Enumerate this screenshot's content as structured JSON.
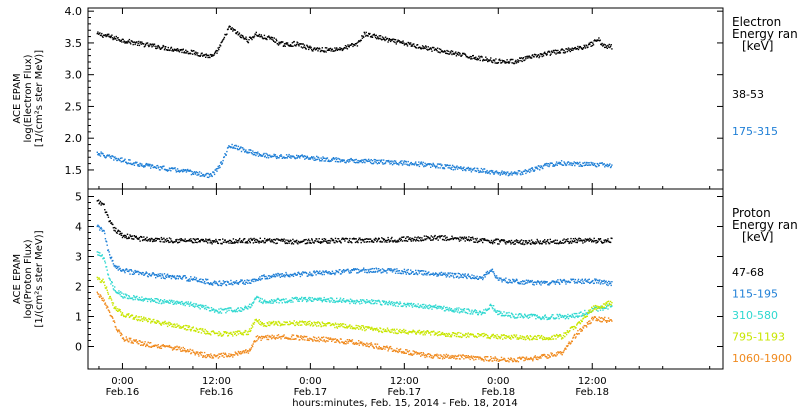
{
  "chart_data": [
    {
      "type": "scatter",
      "panel": "electron",
      "ylabel_lines": [
        "ACE EPAM",
        "log(Electron Flux)",
        "[1/(cm²s ster MeV)]"
      ],
      "ylim": [
        1.2,
        4.05
      ],
      "yticks": [
        "1.5",
        "2.0",
        "2.5",
        "3.0",
        "3.5",
        "4.0"
      ],
      "ytick_values": [
        1.5,
        2.0,
        2.5,
        3.0,
        3.5,
        4.0
      ],
      "legend_title_lines": [
        "Electron",
        "Energy ran",
        "[keV]"
      ],
      "series": [
        {
          "name": "38-53",
          "color": "#000000",
          "x": [
            -3.3,
            -2,
            0,
            2,
            4,
            6,
            8,
            10,
            11,
            11.6,
            12.6,
            13.5,
            14,
            15,
            16,
            17,
            17.8,
            19,
            20,
            21,
            22,
            23,
            24,
            26,
            28,
            30,
            30.8,
            32,
            34,
            36,
            38,
            40,
            42,
            44,
            46,
            48,
            50,
            52,
            54,
            56,
            58,
            60,
            60.6,
            61.5,
            62,
            62.5
          ],
          "y": [
            3.65,
            3.62,
            3.55,
            3.5,
            3.46,
            3.42,
            3.38,
            3.33,
            3.3,
            3.3,
            3.5,
            3.75,
            3.72,
            3.62,
            3.55,
            3.65,
            3.6,
            3.58,
            3.5,
            3.48,
            3.5,
            3.46,
            3.42,
            3.4,
            3.42,
            3.5,
            3.65,
            3.62,
            3.55,
            3.5,
            3.45,
            3.4,
            3.35,
            3.3,
            3.26,
            3.22,
            3.22,
            3.28,
            3.34,
            3.38,
            3.42,
            3.5,
            3.58,
            3.45,
            3.46,
            3.45
          ]
        },
        {
          "name": "175-315",
          "color": "#1f7fd6",
          "x": [
            -3.3,
            -2,
            0,
            2,
            4,
            6,
            8,
            10,
            11,
            11.6,
            12.6,
            13.5,
            14,
            16,
            18,
            20,
            22,
            24,
            26,
            28,
            30,
            32,
            34,
            36,
            38,
            40,
            42,
            44,
            46,
            48,
            50,
            52,
            54,
            56,
            58,
            60,
            62,
            62.5
          ],
          "y": [
            1.78,
            1.72,
            1.66,
            1.6,
            1.56,
            1.52,
            1.49,
            1.44,
            1.42,
            1.45,
            1.62,
            1.87,
            1.88,
            1.8,
            1.74,
            1.72,
            1.72,
            1.7,
            1.68,
            1.66,
            1.66,
            1.64,
            1.63,
            1.62,
            1.6,
            1.58,
            1.55,
            1.52,
            1.5,
            1.46,
            1.45,
            1.5,
            1.58,
            1.62,
            1.6,
            1.6,
            1.58,
            1.58
          ]
        }
      ]
    },
    {
      "type": "scatter",
      "panel": "proton",
      "ylabel_lines": [
        "ACE EPAM",
        "log(Proton Flux)",
        "[1/(cm²s ster MeV)]"
      ],
      "ylim": [
        -0.75,
        5.25
      ],
      "yticks": [
        "0",
        "1",
        "2",
        "3",
        "4",
        "5"
      ],
      "ytick_values": [
        0,
        1,
        2,
        3,
        4,
        5
      ],
      "legend_title_lines": [
        "Proton",
        "Energy ran",
        "[keV]"
      ],
      "series": [
        {
          "name": "47-68",
          "color": "#000000",
          "x": [
            -3.3,
            -2.5,
            -1.8,
            -1,
            0,
            2,
            4,
            6,
            8,
            10,
            12,
            14,
            16,
            18,
            20,
            22,
            24,
            26,
            28,
            30,
            32,
            34,
            36,
            38,
            40,
            42,
            44,
            46,
            48,
            50,
            52,
            54,
            56,
            58,
            60,
            62,
            62.5
          ],
          "y": [
            4.85,
            4.75,
            4.2,
            3.9,
            3.72,
            3.62,
            3.58,
            3.57,
            3.55,
            3.53,
            3.52,
            3.54,
            3.55,
            3.55,
            3.53,
            3.52,
            3.53,
            3.55,
            3.55,
            3.56,
            3.57,
            3.58,
            3.6,
            3.62,
            3.65,
            3.62,
            3.6,
            3.55,
            3.52,
            3.5,
            3.5,
            3.52,
            3.53,
            3.55,
            3.55,
            3.55,
            3.57
          ]
        },
        {
          "name": "115-195",
          "color": "#1f7fd6",
          "x": [
            -3.3,
            -2.5,
            -1.8,
            -1,
            0,
            2,
            4,
            6,
            8,
            10,
            12,
            14,
            16,
            17,
            18,
            20,
            22,
            24,
            26,
            28,
            30,
            32,
            34,
            36,
            38,
            40,
            42,
            44,
            46,
            47,
            48,
            50,
            52,
            54,
            56,
            58,
            60,
            62,
            62.5
          ],
          "y": [
            4.0,
            3.9,
            3.1,
            2.7,
            2.55,
            2.45,
            2.4,
            2.35,
            2.3,
            2.22,
            2.12,
            2.15,
            2.18,
            2.28,
            2.35,
            2.4,
            2.42,
            2.45,
            2.48,
            2.52,
            2.55,
            2.56,
            2.55,
            2.52,
            2.48,
            2.45,
            2.4,
            2.36,
            2.3,
            2.6,
            2.25,
            2.2,
            2.15,
            2.15,
            2.18,
            2.2,
            2.2,
            2.12,
            2.1
          ]
        },
        {
          "name": "310-580",
          "color": "#2fd8d0",
          "x": [
            -3.3,
            -2.5,
            -1.8,
            -1,
            0,
            2,
            4,
            6,
            8,
            10,
            12,
            14,
            16,
            17,
            18,
            20,
            22,
            24,
            26,
            28,
            30,
            32,
            34,
            36,
            38,
            40,
            42,
            44,
            46,
            47,
            48,
            50,
            52,
            54,
            56,
            58,
            60,
            62,
            62.5
          ],
          "y": [
            3.15,
            3.0,
            2.3,
            1.9,
            1.72,
            1.6,
            1.55,
            1.5,
            1.45,
            1.35,
            1.2,
            1.25,
            1.3,
            1.65,
            1.5,
            1.55,
            1.58,
            1.6,
            1.58,
            1.55,
            1.52,
            1.5,
            1.45,
            1.42,
            1.38,
            1.32,
            1.25,
            1.2,
            1.15,
            1.4,
            1.12,
            1.05,
            1.02,
            1.0,
            1.02,
            1.05,
            1.25,
            1.35,
            1.4
          ]
        },
        {
          "name": "795-1193",
          "color": "#c8e600",
          "x": [
            -3.3,
            -2.5,
            -1.8,
            -1,
            0,
            2,
            4,
            6,
            8,
            10,
            12,
            14,
            16,
            17,
            18,
            20,
            22,
            24,
            26,
            28,
            30,
            32,
            34,
            36,
            38,
            40,
            42,
            44,
            46,
            48,
            50,
            52,
            54,
            56,
            58,
            60,
            62,
            62.5
          ],
          "y": [
            2.3,
            2.2,
            1.7,
            1.3,
            1.1,
            0.95,
            0.85,
            0.75,
            0.65,
            0.55,
            0.45,
            0.45,
            0.5,
            0.9,
            0.75,
            0.8,
            0.8,
            0.78,
            0.75,
            0.7,
            0.65,
            0.6,
            0.55,
            0.52,
            0.5,
            0.45,
            0.42,
            0.4,
            0.38,
            0.35,
            0.33,
            0.3,
            0.32,
            0.35,
            0.75,
            1.3,
            1.45,
            1.5
          ]
        },
        {
          "name": "1060-1900",
          "color": "#f08a1e",
          "x": [
            -3.3,
            -2.5,
            -1.8,
            -1,
            0,
            2,
            4,
            6,
            8,
            10,
            12,
            14,
            16,
            17,
            18,
            20,
            22,
            24,
            26,
            28,
            30,
            32,
            34,
            36,
            38,
            40,
            42,
            44,
            46,
            48,
            50,
            52,
            54,
            56,
            58,
            60,
            62,
            62.5
          ],
          "y": [
            1.8,
            1.6,
            1.2,
            0.7,
            0.3,
            0.15,
            0.05,
            0.0,
            -0.1,
            -0.25,
            -0.3,
            -0.25,
            -0.15,
            0.3,
            0.3,
            0.35,
            0.32,
            0.28,
            0.25,
            0.2,
            0.15,
            0.05,
            -0.05,
            -0.15,
            -0.25,
            -0.3,
            -0.32,
            -0.35,
            -0.38,
            -0.4,
            -0.42,
            -0.4,
            -0.3,
            -0.2,
            0.45,
            0.95,
            0.9,
            0.85
          ]
        }
      ]
    }
  ],
  "x_axis": {
    "xlim": [
      -4.4,
      76.7
    ],
    "ticks": [
      {
        "x": 0,
        "time": "0:00",
        "date": "Feb.16"
      },
      {
        "x": 12,
        "time": "12:00",
        "date": "Feb.16"
      },
      {
        "x": 24,
        "time": "0:00",
        "date": "Feb.17"
      },
      {
        "x": 36,
        "time": "12:00",
        "date": "Feb.17"
      },
      {
        "x": 48,
        "time": "0:00",
        "date": "Feb.18"
      },
      {
        "x": 60,
        "time": "12:00",
        "date": "Feb.18"
      }
    ],
    "xlabel": "hours:minutes, Feb. 15, 2014 - Feb. 18, 2014"
  }
}
